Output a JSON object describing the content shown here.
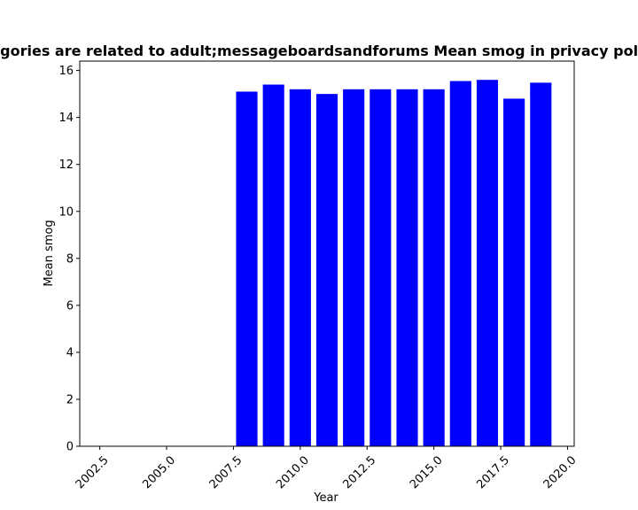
{
  "chart_data": {
    "type": "bar",
    "title": "Categories are related to adult;messageboardsandforums Mean smog in privacy policies",
    "xlabel": "Year",
    "ylabel": "Mean smog",
    "bar_color": "#0000ff",
    "x": [
      2008,
      2009,
      2010,
      2011,
      2012,
      2013,
      2014,
      2015,
      2016,
      2017,
      2018,
      2019
    ],
    "values": [
      15.1,
      15.4,
      15.2,
      15.0,
      15.2,
      15.2,
      15.2,
      15.2,
      15.55,
      15.6,
      14.8,
      15.48
    ],
    "xlim": [
      2001.75,
      2020.25
    ],
    "ylim": [
      0,
      16.4
    ],
    "xticks": [
      "2002.5",
      "2005.0",
      "2007.5",
      "2010.0",
      "2012.5",
      "2015.0",
      "2017.5",
      "2020.0"
    ],
    "xtick_values": [
      2002.5,
      2005.0,
      2007.5,
      2010.0,
      2012.5,
      2015.0,
      2017.5,
      2020.0
    ],
    "yticks": [
      "0",
      "2",
      "4",
      "6",
      "8",
      "10",
      "12",
      "14",
      "16"
    ],
    "ytick_values": [
      0,
      2,
      4,
      6,
      8,
      10,
      12,
      14,
      16
    ],
    "grid": false,
    "legend": "none"
  }
}
